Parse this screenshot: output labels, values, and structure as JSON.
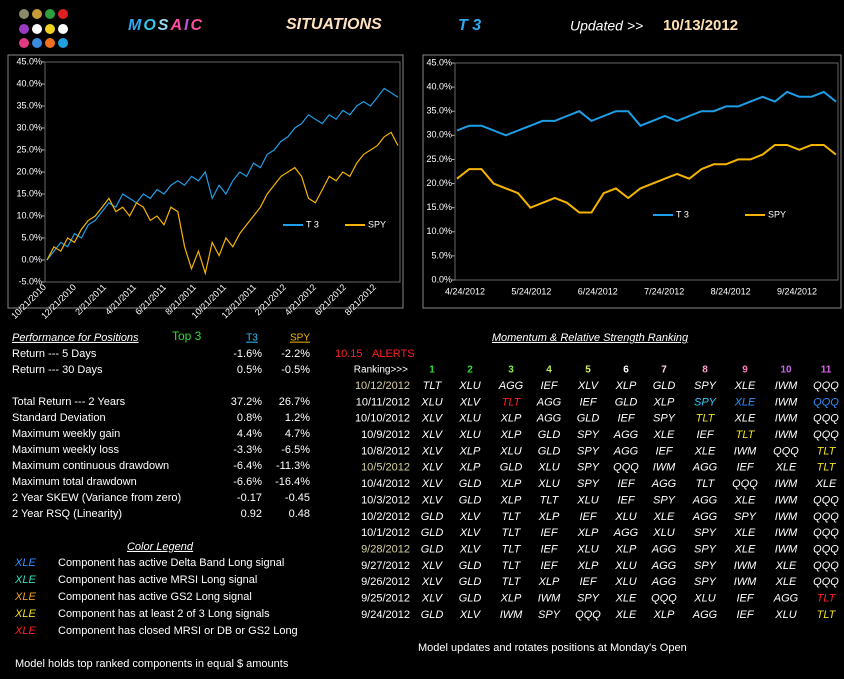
{
  "header": {
    "brand": "MOSAIC",
    "brand_colors": [
      "#2ea8f0",
      "#35c6e8",
      "#9ad8f0",
      "#ff4fa3",
      "#c04fe0",
      "#ff4fa3"
    ],
    "section": "SITUATIONS",
    "model": "T 3",
    "updated_label": "Updated >>",
    "updated_date": "10/13/2012"
  },
  "chart_data": [
    {
      "type": "line",
      "xticks": [
        "10/21/2010",
        "12/21/2010",
        "2/21/2011",
        "4/21/2011",
        "6/21/2011",
        "8/21/2011",
        "10/21/2011",
        "12/21/2011",
        "2/21/2012",
        "4/21/2012",
        "6/21/2012",
        "8/21/2012"
      ],
      "ylim": [
        -5,
        45
      ],
      "yticks": [
        {
          "value": -5,
          "label": "-5.0%"
        },
        {
          "value": 0,
          "label": "0.0%"
        },
        {
          "value": 5,
          "label": "5.0%"
        },
        {
          "value": 10,
          "label": "10.0%"
        },
        {
          "value": 15,
          "label": "15.0%"
        },
        {
          "value": 20,
          "label": "20.0%"
        },
        {
          "value": 25,
          "label": "25.0%"
        },
        {
          "value": 30,
          "label": "30.0%"
        },
        {
          "value": 35,
          "label": "35.0%"
        },
        {
          "value": 40,
          "label": "40.0%"
        },
        {
          "value": 45,
          "label": "45.0%"
        }
      ],
      "series": [
        {
          "name": "T 3",
          "color": "#1e9ee6",
          "values": [
            0,
            2,
            4,
            3,
            6,
            5,
            8,
            9,
            11,
            13,
            12,
            15,
            14,
            13,
            15,
            14,
            16,
            15,
            17,
            18,
            17,
            19,
            18,
            20,
            14,
            17,
            15,
            18,
            20,
            19,
            22,
            21,
            24,
            25,
            27,
            28,
            30,
            31,
            33,
            32,
            31,
            33,
            32,
            34,
            33,
            35,
            36,
            35,
            37,
            39,
            38,
            37
          ]
        },
        {
          "name": "SPY",
          "color": "#f5b400",
          "values": [
            0,
            3,
            2,
            5,
            4,
            7,
            9,
            10,
            12,
            14,
            11,
            12,
            10,
            13,
            12,
            9,
            10,
            8,
            12,
            11,
            3,
            -2,
            2,
            -3,
            4,
            1,
            5,
            3,
            6,
            8,
            10,
            12,
            15,
            17,
            19,
            20,
            21,
            19,
            14,
            13,
            16,
            19,
            18,
            20,
            19,
            22,
            24,
            25,
            26,
            28,
            29,
            26
          ]
        }
      ]
    },
    {
      "type": "line",
      "xticks": [
        "4/24/2012",
        "5/24/2012",
        "6/24/2012",
        "7/24/2012",
        "8/24/2012",
        "9/24/2012"
      ],
      "ylim": [
        0,
        45
      ],
      "yticks": [
        {
          "value": 0,
          "label": "0.0%"
        },
        {
          "value": 5,
          "label": "5.0%"
        },
        {
          "value": 10,
          "label": "10.0%"
        },
        {
          "value": 15,
          "label": "15.0%"
        },
        {
          "value": 20,
          "label": "20.0%"
        },
        {
          "value": 25,
          "label": "25.0%"
        },
        {
          "value": 30,
          "label": "30.0%"
        },
        {
          "value": 35,
          "label": "35.0%"
        },
        {
          "value": 40,
          "label": "40.0%"
        },
        {
          "value": 45,
          "label": "45.0%"
        }
      ],
      "series": [
        {
          "name": "T 3",
          "color": "#1e9ee6",
          "values": [
            31,
            32,
            32,
            31,
            30,
            31,
            32,
            33,
            33,
            34,
            35,
            33,
            34,
            35,
            35,
            32,
            33,
            34,
            33,
            34,
            35,
            35,
            36,
            36,
            37,
            38,
            37,
            39,
            38,
            38,
            39,
            37
          ]
        },
        {
          "name": "SPY",
          "color": "#f5b400",
          "values": [
            21,
            23,
            23,
            20,
            19,
            18,
            15,
            16,
            17,
            16,
            14,
            14,
            18,
            19,
            17,
            19,
            20,
            21,
            22,
            21,
            23,
            24,
            24,
            25,
            25,
            26,
            28,
            28,
            27,
            28,
            28,
            26
          ]
        }
      ]
    }
  ],
  "performance": {
    "title": "Performance for Positions",
    "subtitle": "Top 3",
    "columns": [
      "T3",
      "SPY"
    ],
    "rows": [
      [
        "Return --- 5 Days",
        "-1.6%",
        "-2.2%"
      ],
      [
        "Return --- 30 Days",
        "0.5%",
        "-0.5%"
      ],
      [
        "Total Return --- 2 Years",
        "37.2%",
        "26.7%"
      ],
      [
        "Standard Deviation",
        "0.8%",
        "1.2%"
      ],
      [
        "Maximum weekly gain",
        "4.4%",
        "4.7%"
      ],
      [
        "Maximum weekly loss",
        "-3.3%",
        "-6.5%"
      ],
      [
        "Maximum continuous drawdown",
        "-6.4%",
        "-11.3%"
      ],
      [
        "Maximum total drawdown",
        "-6.6%",
        "-16.4%"
      ],
      [
        "2 Year SKEW  (Variance from zero)",
        "-0.17",
        "-0.45"
      ],
      [
        "2 Year RSQ  (Linearity)",
        "0.92",
        "0.48"
      ]
    ]
  },
  "alerts": {
    "time": "10.15",
    "label": "ALERTS"
  },
  "ranking": {
    "title": "Momentum & Relative Strength Ranking",
    "label": "Ranking>>>",
    "columns": [
      "1",
      "2",
      "3",
      "4",
      "5",
      "6",
      "7",
      "8",
      "9",
      "10",
      "11"
    ],
    "column_colors": [
      "#33dd33",
      "#33dd33",
      "#88ee44",
      "#bbee66",
      "#ddee66",
      "#ffffff",
      "#ffdddd",
      "#ff99cc",
      "#ff77bb",
      "#cc66ee",
      "#dd66ee"
    ],
    "rows": [
      {
        "date": "10/12/2012",
        "date_color": "#d8d0a0",
        "cells": [
          "TLT",
          "XLU",
          "AGG",
          "IEF",
          "XLV",
          "XLP",
          "GLD",
          "SPY",
          "XLE",
          "IWM",
          "QQQ"
        ]
      },
      {
        "date": "10/11/2012",
        "cells": [
          "XLU",
          "XLV",
          {
            "text": "TLT",
            "color": "#ff2020"
          },
          "AGG",
          "IEF",
          "GLD",
          "XLP",
          {
            "text": "SPY",
            "color": "#30d0ff"
          },
          {
            "text": "XLE",
            "color": "#3090ff"
          },
          "IWM",
          {
            "text": "QQQ",
            "color": "#3090ff"
          }
        ]
      },
      {
        "date": "10/10/2012",
        "cells": [
          "XLV",
          "XLU",
          "XLP",
          "AGG",
          "GLD",
          "IEF",
          "SPY",
          {
            "text": "TLT",
            "color": "#f0e020"
          },
          "XLE",
          "IWM",
          "QQQ"
        ]
      },
      {
        "date": "10/9/2012",
        "cells": [
          "XLV",
          "XLU",
          "XLP",
          "GLD",
          "SPY",
          "AGG",
          "XLE",
          "IEF",
          {
            "text": "TLT",
            "color": "#f0e020"
          },
          "IWM",
          "QQQ"
        ]
      },
      {
        "date": "10/8/2012",
        "cells": [
          "XLV",
          "XLP",
          "XLU",
          "GLD",
          "SPY",
          "AGG",
          "IEF",
          "XLE",
          "IWM",
          "QQQ",
          {
            "text": "TLT",
            "color": "#f0e020"
          }
        ]
      },
      {
        "date": "10/5/2012",
        "date_color": "#d8d0a0",
        "cells": [
          "XLV",
          "XLP",
          "GLD",
          "XLU",
          "SPY",
          "QQQ",
          "IWM",
          "AGG",
          "IEF",
          "XLE",
          {
            "text": "TLT",
            "color": "#f0e020"
          }
        ]
      },
      {
        "date": "10/4/2012",
        "cells": [
          "XLV",
          "GLD",
          "XLP",
          "XLU",
          "SPY",
          "IEF",
          "AGG",
          "TLT",
          "QQQ",
          "IWM",
          "XLE"
        ]
      },
      {
        "date": "10/3/2012",
        "cells": [
          "XLV",
          "GLD",
          "XLP",
          "TLT",
          "XLU",
          "IEF",
          "SPY",
          "AGG",
          "XLE",
          "IWM",
          "QQQ"
        ]
      },
      {
        "date": "10/2/2012",
        "cells": [
          "GLD",
          "XLV",
          "TLT",
          "XLP",
          "IEF",
          "XLU",
          "XLE",
          "AGG",
          "SPY",
          "IWM",
          "QQQ"
        ]
      },
      {
        "date": "10/1/2012",
        "cells": [
          "GLD",
          "XLV",
          "TLT",
          "IEF",
          "XLP",
          "AGG",
          "XLU",
          "SPY",
          "XLE",
          "IWM",
          "QQQ"
        ]
      },
      {
        "date": "9/28/2012",
        "date_color": "#d8d0a0",
        "cells": [
          "GLD",
          "XLV",
          "TLT",
          "IEF",
          "XLU",
          "XLP",
          "AGG",
          "SPY",
          "XLE",
          "IWM",
          "QQQ"
        ]
      },
      {
        "date": "9/27/2012",
        "cells": [
          "XLV",
          "GLD",
          "TLT",
          "IEF",
          "XLP",
          "XLU",
          "AGG",
          "SPY",
          "IWM",
          "XLE",
          "QQQ"
        ]
      },
      {
        "date": "9/26/2012",
        "cells": [
          "XLV",
          "GLD",
          "TLT",
          "XLP",
          "IEF",
          "XLU",
          "AGG",
          "SPY",
          "IWM",
          "XLE",
          "QQQ"
        ]
      },
      {
        "date": "9/25/2012",
        "cells": [
          "XLV",
          "GLD",
          "XLP",
          "IWM",
          "SPY",
          "XLE",
          "QQQ",
          "XLU",
          "IEF",
          "AGG",
          {
            "text": "TLT",
            "color": "#ff2020"
          }
        ]
      },
      {
        "date": "9/24/2012",
        "cells": [
          "GLD",
          "XLV",
          "IWM",
          "SPY",
          "QQQ",
          "XLE",
          "XLP",
          "AGG",
          "IEF",
          "XLU",
          {
            "text": "TLT",
            "color": "#f0e020"
          }
        ]
      }
    ]
  },
  "legend": {
    "title": "Color Legend",
    "entries": [
      {
        "ticker": "XLE",
        "color": "#3090ff",
        "text": "Component has active Delta Band Long signal"
      },
      {
        "ticker": "XLE",
        "color": "#30e0c0",
        "text": "Component has active MRSI Long signal"
      },
      {
        "ticker": "XLE",
        "color": "#f0a020",
        "text": "Component has active GS2 Long signal"
      },
      {
        "ticker": "XLE",
        "color": "#f0e020",
        "text": "Component has at least 2 of 3 Long signals"
      },
      {
        "ticker": "XLE",
        "color": "#ff2020",
        "text": "Component has closed MRSI or DB or GS2 Long"
      }
    ]
  },
  "notes": [
    "Model holds top ranked  components in equal  $ amounts",
    "Model updates and rotates positions at Monday's Open"
  ]
}
